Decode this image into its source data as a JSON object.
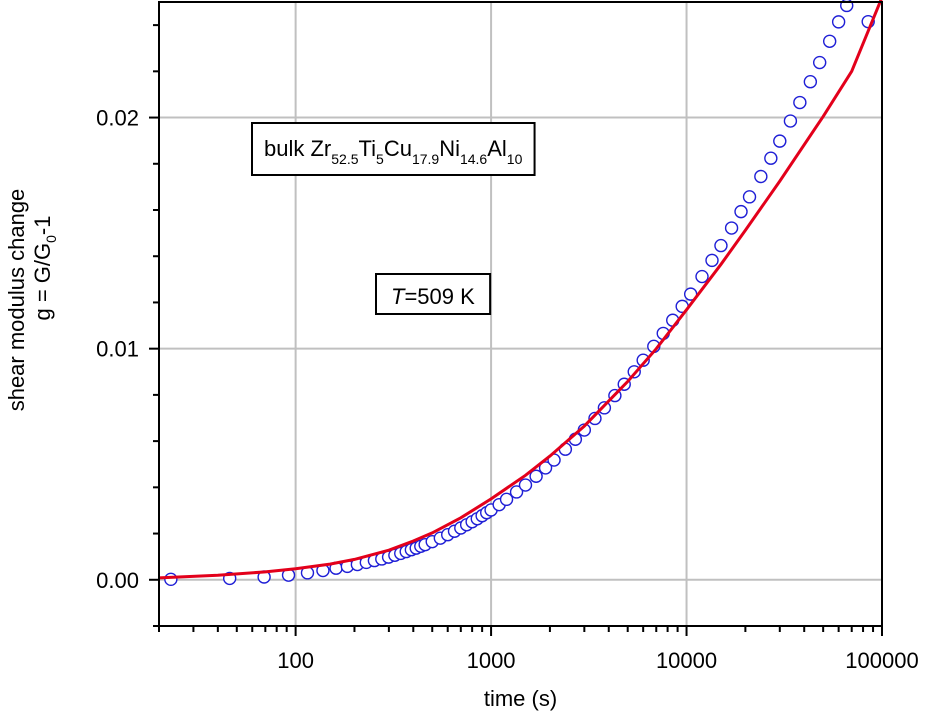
{
  "chart_data": {
    "type": "scatter",
    "xlabel": "time (s)",
    "ylabel_line1": "shear modulus change",
    "ylabel_line2": {
      "base": "g = G/G",
      "sub": "0",
      "tail": "-1"
    },
    "x_scale": "log",
    "xlim": [
      20,
      100000
    ],
    "ylim": [
      -0.002,
      0.025
    ],
    "x_ticks": [
      {
        "value": 100,
        "label": "100"
      },
      {
        "value": 1000,
        "label": "1000"
      },
      {
        "value": 10000,
        "label": "10000"
      },
      {
        "value": 100000,
        "label": "100000"
      }
    ],
    "y_ticks": [
      {
        "value": 0.0,
        "label": "0.00"
      },
      {
        "value": 0.01,
        "label": "0.01"
      },
      {
        "value": 0.02,
        "label": "0.02"
      }
    ],
    "grid": true,
    "annotations": {
      "composition": {
        "parts": [
          {
            "text": "bulk Zr",
            "sub": false
          },
          {
            "text": "52.5",
            "sub": true
          },
          {
            "text": "Ti",
            "sub": false
          },
          {
            "text": "5",
            "sub": true
          },
          {
            "text": "Cu",
            "sub": false
          },
          {
            "text": "17.9",
            "sub": true
          },
          {
            "text": "Ni",
            "sub": false
          },
          {
            "text": "14.6",
            "sub": true
          },
          {
            "text": "Al",
            "sub": false
          },
          {
            "text": "10",
            "sub": true
          }
        ]
      },
      "temperature": {
        "italic": "T",
        "text": "=509 K"
      }
    },
    "series": [
      {
        "kind": "markers",
        "marker": "open-circle",
        "color": "#1f1fd6",
        "x": [
          23,
          46,
          69,
          92,
          115,
          138,
          161,
          184,
          207,
          230,
          253,
          276,
          299,
          322,
          345,
          368,
          391,
          414,
          437,
          460,
          500,
          550,
          600,
          650,
          700,
          750,
          800,
          850,
          900,
          950,
          1000,
          1100,
          1200,
          1350,
          1500,
          1700,
          1900,
          2100,
          2400,
          2700,
          3000,
          3400,
          3800,
          4300,
          4800,
          5400,
          6000,
          6800,
          7600,
          8500,
          9500,
          10500,
          12000,
          13500,
          15000,
          17000,
          19000,
          21000,
          24000,
          27000,
          30000,
          34000,
          38000,
          43000,
          48000,
          54000,
          60000,
          66000,
          72000,
          78000,
          85000
        ],
        "y": [
          2e-05,
          6e-05,
          0.00012,
          0.0002,
          0.0003,
          0.0004,
          0.0005,
          0.00058,
          0.00066,
          0.00075,
          0.00083,
          0.0009,
          0.00098,
          0.00106,
          0.00114,
          0.00122,
          0.0013,
          0.00137,
          0.00145,
          0.00152,
          0.00165,
          0.0018,
          0.00195,
          0.0021,
          0.00224,
          0.00238,
          0.00251,
          0.00264,
          0.00277,
          0.0029,
          0.00302,
          0.00325,
          0.00348,
          0.0038,
          0.0041,
          0.00448,
          0.00484,
          0.00518,
          0.00565,
          0.00608,
          0.00648,
          0.00698,
          0.00744,
          0.00797,
          0.00846,
          0.009,
          0.0095,
          0.0101,
          0.01066,
          0.01123,
          0.01183,
          0.01236,
          0.01312,
          0.01382,
          0.01446,
          0.01522,
          0.01593,
          0.01657,
          0.01745,
          0.01824,
          0.01898,
          0.01985,
          0.02065,
          0.02155,
          0.02238,
          0.0233,
          0.02414,
          0.02485,
          0.02552,
          0.02613,
          0.02415
        ]
      },
      {
        "kind": "line",
        "color": "#e3001b",
        "x": [
          20,
          40,
          70,
          100,
          150,
          200,
          300,
          400,
          500,
          700,
          1000,
          1500,
          2000,
          3000,
          5000,
          7000,
          10000,
          15000,
          20000,
          30000,
          50000,
          70000,
          100000
        ],
        "y": [
          8e-05,
          0.0002,
          0.00034,
          0.00048,
          0.00068,
          0.00088,
          0.00128,
          0.00168,
          0.00203,
          0.00268,
          0.0035,
          0.00452,
          0.00535,
          0.00665,
          0.00858,
          0.01,
          0.01168,
          0.01365,
          0.01512,
          0.01725,
          0.02005,
          0.022,
          0.0252
        ]
      }
    ]
  }
}
